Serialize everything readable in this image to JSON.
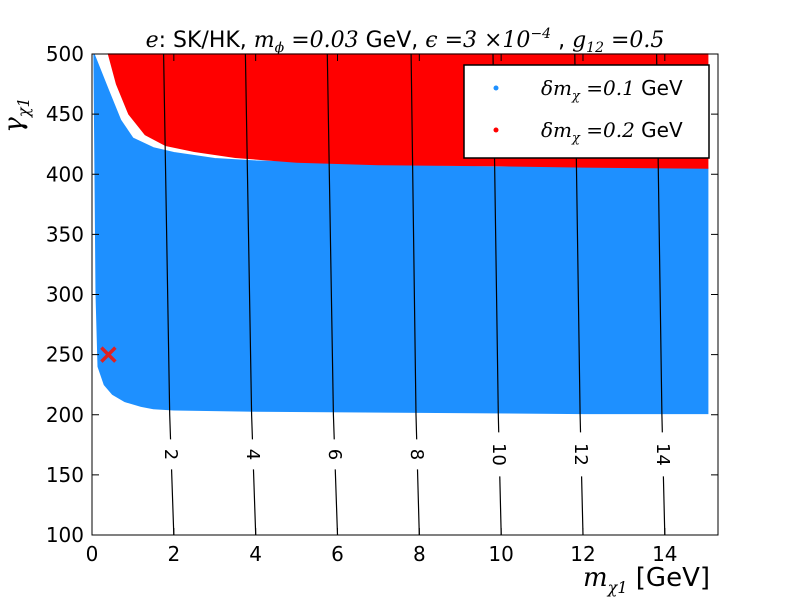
{
  "chart_data": {
    "type": "scatter",
    "title_parts": {
      "lead_var": "e",
      "lead_text": ": SK/HK, ",
      "mphi_label": "m",
      "mphi_sub": "ϕ",
      "mphi_value": " =0.03",
      "mphi_unit": " GeV, ",
      "eps_label": "ϵ",
      "eps_value": " =3 ×10",
      "eps_exp": "−4",
      "eps_sep": " , ",
      "g_label": "g",
      "g_sub": "12",
      "g_value": " =0.5"
    },
    "xlabel_var": "m",
    "xlabel_sub": "χ1",
    "xlabel_unit": " [GeV]",
    "ylabel_var": "γ",
    "ylabel_sub": "χ1",
    "xlim": [
      0,
      15.3
    ],
    "ylim": [
      100,
      500
    ],
    "xticks": [
      0,
      2,
      4,
      6,
      8,
      10,
      12,
      14
    ],
    "yticks": [
      100,
      150,
      200,
      250,
      300,
      350,
      400,
      450,
      500
    ],
    "legend": {
      "location": "top-right",
      "entries": [
        {
          "label_var": "δm",
          "label_sub": "χ",
          "label_value": " =0.1",
          "label_unit": " GeV",
          "color": "#1e90ff"
        },
        {
          "label_var": "δm",
          "label_sub": "χ",
          "label_value": " =0.2",
          "label_unit": " GeV",
          "color": "#ff0000"
        }
      ]
    },
    "series": [
      {
        "name": "δm_χ = 0.1 GeV",
        "color": "#1e90ff",
        "x_range": [
          0.05,
          15.05
        ],
        "lower_boundary": [
          [
            0.1,
            300
          ],
          [
            0.15,
            240
          ],
          [
            0.3,
            225
          ],
          [
            0.5,
            217
          ],
          [
            0.8,
            211
          ],
          [
            1.2,
            207
          ],
          [
            1.5,
            205
          ],
          [
            2,
            204
          ],
          [
            4,
            203
          ],
          [
            8,
            202
          ],
          [
            12,
            201
          ],
          [
            15.05,
            201
          ]
        ],
        "upper_boundary": [
          [
            0.05,
            500
          ],
          [
            0.4,
            470
          ],
          [
            0.7,
            445
          ],
          [
            1.0,
            430
          ],
          [
            1.5,
            422
          ],
          [
            2,
            418
          ],
          [
            3,
            413
          ],
          [
            4,
            411
          ],
          [
            6,
            409
          ],
          [
            8,
            407
          ],
          [
            10,
            406
          ],
          [
            12,
            406
          ],
          [
            15.05,
            405
          ]
        ]
      },
      {
        "name": "δm_χ = 0.2 GeV",
        "color": "#ff0000",
        "x_range": [
          0.4,
          15.05
        ],
        "lower_boundary": [
          [
            0.4,
            500
          ],
          [
            0.6,
            475
          ],
          [
            0.9,
            450
          ],
          [
            1.3,
            433
          ],
          [
            1.8,
            424
          ],
          [
            2.5,
            419
          ],
          [
            3.5,
            414
          ],
          [
            5,
            410
          ],
          [
            7,
            408
          ],
          [
            10,
            407
          ],
          [
            12,
            406
          ],
          [
            15.05,
            405
          ]
        ],
        "upper_boundary": [
          [
            0.4,
            500
          ],
          [
            15.05,
            500
          ]
        ]
      }
    ],
    "contours": [
      {
        "label": "2",
        "points": [
          [
            1.75,
            500
          ],
          [
            1.9,
            200
          ],
          [
            2.0,
            100
          ]
        ]
      },
      {
        "label": "4",
        "points": [
          [
            3.75,
            500
          ],
          [
            3.9,
            200
          ],
          [
            4.0,
            100
          ]
        ]
      },
      {
        "label": "6",
        "points": [
          [
            5.75,
            500
          ],
          [
            5.9,
            200
          ],
          [
            6.0,
            100
          ]
        ]
      },
      {
        "label": "8",
        "points": [
          [
            7.8,
            500
          ],
          [
            7.92,
            200
          ],
          [
            8.0,
            100
          ]
        ]
      },
      {
        "label": "10",
        "points": [
          [
            9.8,
            500
          ],
          [
            9.93,
            200
          ],
          [
            10.0,
            100
          ]
        ]
      },
      {
        "label": "12",
        "points": [
          [
            11.8,
            500
          ],
          [
            11.93,
            200
          ],
          [
            12.0,
            100
          ]
        ]
      },
      {
        "label": "14",
        "points": [
          [
            13.8,
            500
          ],
          [
            13.93,
            200
          ],
          [
            14.0,
            100
          ]
        ]
      }
    ],
    "contour_label_y": 167,
    "marker": {
      "symbol": "x",
      "x": 0.4,
      "y": 250,
      "color": "#dd2222"
    }
  }
}
